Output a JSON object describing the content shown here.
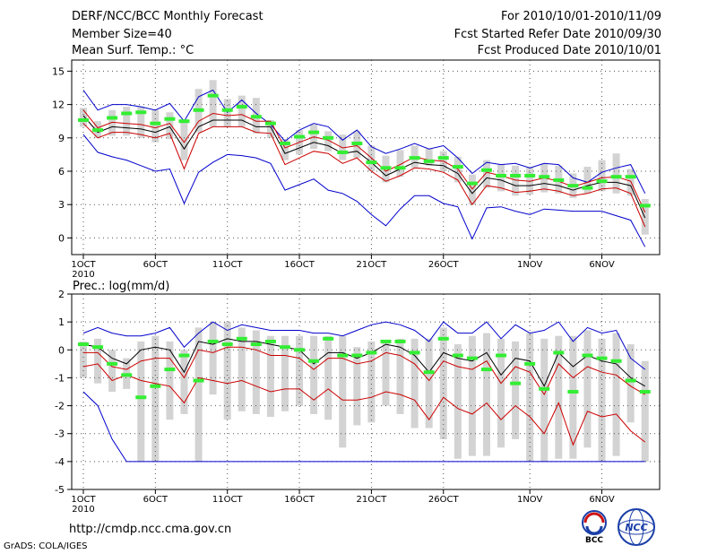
{
  "header": {
    "left": [
      "DERF/NCC/BCC Monthly Forecast",
      "Member Size=40",
      "Mean Surf. Temp.: °C"
    ],
    "right": [
      "For 2010/10/01-2010/11/09",
      "Fcst Started Refer Date 2010/09/30",
      "Fcst Produced Date 2010/10/01"
    ]
  },
  "footer": {
    "url": "http://cmdp.ncc.cma.gov.cn",
    "credit": "GrADS: COLA/IGES",
    "logo_bcc": "BCC",
    "logo_ncc": "NCC"
  },
  "colors": {
    "box": "#d3d3d3",
    "median": "#000000",
    "inner": "#cc0000",
    "outer": "#0000cc",
    "obs": "#33ee33",
    "grid": "#555555"
  },
  "chart_data": [
    {
      "type": "box-forecast",
      "title": "Mean Surf. Temp.: °C",
      "ylim": [
        -1.5,
        16
      ],
      "yticks": [
        0,
        3,
        6,
        9,
        12,
        15
      ],
      "ytick_labels": [
        "0",
        "3",
        "6",
        "9",
        "12",
        "15"
      ],
      "xtick_days": [
        1,
        6,
        11,
        16,
        21,
        26,
        32,
        37
      ],
      "xtick_labels": [
        "1OCT",
        "6OCT",
        "11OCT",
        "16OCT",
        "21OCT",
        "26OCT",
        "1NOV",
        "6NOV"
      ],
      "xtick_sublabel": "2010",
      "days": [
        1,
        2,
        3,
        4,
        5,
        6,
        7,
        8,
        9,
        10,
        11,
        12,
        13,
        14,
        15,
        16,
        17,
        18,
        19,
        20,
        21,
        22,
        23,
        24,
        25,
        26,
        27,
        28,
        29,
        30,
        31,
        32,
        33,
        34,
        35,
        36,
        37,
        38,
        39,
        40
      ],
      "box_low": [
        10.0,
        9.0,
        9.2,
        9.2,
        9.0,
        8.6,
        8.9,
        7.0,
        9.5,
        10.0,
        10.0,
        10.0,
        9.4,
        9.0,
        7.0,
        7.5,
        8.0,
        7.8,
        7.0,
        7.2,
        6.0,
        5.0,
        5.5,
        6.3,
        6.5,
        6.0,
        5.0,
        3.0,
        4.5,
        4.2,
        3.8,
        3.9,
        4.1,
        4.0,
        3.6,
        4.0,
        4.2,
        4.0,
        3.8,
        0.3
      ],
      "box_high": [
        11.7,
        10.5,
        11.5,
        11.8,
        11.8,
        11.5,
        11.3,
        10.6,
        13.4,
        14.2,
        12.5,
        12.8,
        12.6,
        10.6,
        8.9,
        9.7,
        10.2,
        9.6,
        9.3,
        9.6,
        8.3,
        7.4,
        7.9,
        8.3,
        8.0,
        7.8,
        7.3,
        5.7,
        7.0,
        6.6,
        6.5,
        6.4,
        6.7,
        6.5,
        5.8,
        6.4,
        7.0,
        7.6,
        6.2,
        3.5
      ],
      "median": [
        11.0,
        9.5,
        10.0,
        9.9,
        9.8,
        9.5,
        10.0,
        8.0,
        10.0,
        10.6,
        10.6,
        10.6,
        10.0,
        10.0,
        7.6,
        8.1,
        8.6,
        8.3,
        7.6,
        7.8,
        6.8,
        5.6,
        6.2,
        6.8,
        6.6,
        6.5,
        5.8,
        4.0,
        5.4,
        5.2,
        4.7,
        4.7,
        4.9,
        4.7,
        4.3,
        4.7,
        5.0,
        5.0,
        4.7,
        1.8
      ],
      "inner_high": [
        11.5,
        9.9,
        10.4,
        10.3,
        10.2,
        9.9,
        10.3,
        8.6,
        10.5,
        11.2,
        11.0,
        11.1,
        10.5,
        10.5,
        8.1,
        8.6,
        9.1,
        8.8,
        8.1,
        8.3,
        7.2,
        6.0,
        6.6,
        7.3,
        7.0,
        6.9,
        6.2,
        4.4,
        5.9,
        5.6,
        5.2,
        5.1,
        5.4,
        5.1,
        4.6,
        5.0,
        5.4,
        5.5,
        5.1,
        2.3
      ],
      "inner_low": [
        10.3,
        9.0,
        9.5,
        9.5,
        9.3,
        9.0,
        9.4,
        6.2,
        9.4,
        10.0,
        10.0,
        10.0,
        9.5,
        9.4,
        6.6,
        7.2,
        7.8,
        7.6,
        6.7,
        7.2,
        6.0,
        5.1,
        5.6,
        6.3,
        6.2,
        5.9,
        5.2,
        3.0,
        4.7,
        4.5,
        4.1,
        4.2,
        4.4,
        4.2,
        3.8,
        4.0,
        4.4,
        4.5,
        4.0,
        1.0
      ],
      "outer_high": [
        13.3,
        11.5,
        12.0,
        12.0,
        11.8,
        11.5,
        12.1,
        10.5,
        12.7,
        13.3,
        11.3,
        12.4,
        11.2,
        10.2,
        8.7,
        9.7,
        10.3,
        10.0,
        8.8,
        9.7,
        8.2,
        7.6,
        8.0,
        8.5,
        8.0,
        8.3,
        7.2,
        5.8,
        6.8,
        6.6,
        6.7,
        6.3,
        6.7,
        6.6,
        5.4,
        5.0,
        5.9,
        6.3,
        6.6,
        4.0
      ],
      "outer_low": [
        9.3,
        7.7,
        7.3,
        7.0,
        6.5,
        6.0,
        6.2,
        3.1,
        5.9,
        6.8,
        7.5,
        7.4,
        7.2,
        6.7,
        4.3,
        4.8,
        5.3,
        4.3,
        4.0,
        3.3,
        2.1,
        1.1,
        2.6,
        3.8,
        3.8,
        3.1,
        2.8,
        -0.1,
        2.7,
        2.8,
        2.4,
        2.1,
        2.6,
        2.5,
        2.4,
        2.4,
        2.4,
        2.0,
        1.6,
        -0.8
      ],
      "observed": [
        10.6,
        9.7,
        10.8,
        11.2,
        11.3,
        10.3,
        10.7,
        10.5,
        11.5,
        12.8,
        11.5,
        11.8,
        10.9,
        10.3,
        8.5,
        9.1,
        9.5,
        9.0,
        7.7,
        8.5,
        6.8,
        6.3,
        6.3,
        7.2,
        6.9,
        7.2,
        6.4,
        4.9,
        6.1,
        5.6,
        5.6,
        5.6,
        5.5,
        5.2,
        4.7,
        4.5,
        5.1,
        5.5,
        5.5,
        2.9
      ]
    },
    {
      "type": "box-forecast",
      "title": "Prec.: log(mm/d)",
      "ylim": [
        -5,
        2
      ],
      "yticks": [
        -5,
        -4,
        -3,
        -2,
        -1,
        0,
        1,
        2
      ],
      "ytick_labels": [
        "-5",
        "-4",
        "-3",
        "-2",
        "-1",
        "0",
        "1",
        "2"
      ],
      "xtick_days": [
        1,
        6,
        11,
        16,
        21,
        26,
        32,
        37
      ],
      "xtick_labels": [
        "1OCT",
        "6OCT",
        "11OCT",
        "16OCT",
        "21OCT",
        "26OCT",
        "1NOV",
        "6NOV"
      ],
      "xtick_sublabel": "2010",
      "days": [
        1,
        2,
        3,
        4,
        5,
        6,
        7,
        8,
        9,
        10,
        11,
        12,
        13,
        14,
        15,
        16,
        17,
        18,
        19,
        20,
        21,
        22,
        23,
        24,
        25,
        26,
        27,
        28,
        29,
        30,
        31,
        32,
        33,
        34,
        35,
        36,
        37,
        38,
        39,
        40
      ],
      "box_low": [
        -1.0,
        -1.2,
        -1.5,
        -1.4,
        -4.0,
        -4.0,
        -2.5,
        -2.3,
        -4.0,
        -1.6,
        -2.5,
        -2.2,
        -2.3,
        -2.4,
        -2.2,
        -2.0,
        -2.3,
        -2.5,
        -3.5,
        -2.7,
        -2.6,
        -2.0,
        -2.3,
        -2.8,
        -2.8,
        -3.2,
        -3.9,
        -3.8,
        -3.8,
        -3.5,
        -3.2,
        -4.0,
        -4.0,
        -3.9,
        -3.9,
        -3.5,
        -4.0,
        -3.8,
        -2.6,
        -4.0
      ],
      "box_high": [
        0.3,
        0.4,
        0.0,
        -0.3,
        0.3,
        0.5,
        0.3,
        0.0,
        0.8,
        1.0,
        1.0,
        0.8,
        0.7,
        0.5,
        0.5,
        0.5,
        0.5,
        0.5,
        0.5,
        0.1,
        0.3,
        0.3,
        0.4,
        0.4,
        0.4,
        0.8,
        0.2,
        0.5,
        0.6,
        0.4,
        0.3,
        0.6,
        0.4,
        0.5,
        0.5,
        0.7,
        0.4,
        0.6,
        0.2,
        -0.4
      ],
      "median": [
        0.2,
        0.1,
        -0.3,
        -0.5,
        0.0,
        0.1,
        0.0,
        -0.8,
        0.3,
        0.2,
        0.4,
        0.3,
        0.3,
        0.2,
        0.1,
        0.0,
        -0.5,
        -0.1,
        -0.1,
        -0.3,
        -0.1,
        0.2,
        0.1,
        -0.2,
        -0.8,
        -0.1,
        -0.3,
        -0.4,
        -0.1,
        -0.9,
        -0.3,
        -0.4,
        -1.3,
        -0.1,
        -0.6,
        -0.2,
        -0.4,
        -0.5,
        -1.0,
        -1.3
      ],
      "inner_high": [
        -0.1,
        -0.1,
        -0.6,
        -0.7,
        -0.4,
        -0.3,
        -0.3,
        -1.0,
        0.0,
        -0.1,
        0.1,
        0.1,
        0.0,
        -0.2,
        -0.2,
        -0.3,
        -0.7,
        -0.3,
        -0.3,
        -0.5,
        -0.4,
        -0.1,
        -0.2,
        -0.5,
        -1.1,
        -0.4,
        -0.6,
        -0.7,
        -0.4,
        -1.2,
        -0.6,
        -0.8,
        -1.6,
        -0.5,
        -1.0,
        -0.6,
        -0.8,
        -0.9,
        -1.3,
        -1.6
      ],
      "inner_low": [
        -0.6,
        -0.5,
        -1.1,
        -0.9,
        -1.1,
        -1.2,
        -1.3,
        -1.9,
        -1.0,
        -1.1,
        -1.2,
        -1.1,
        -1.3,
        -1.5,
        -1.4,
        -1.4,
        -1.8,
        -1.4,
        -1.8,
        -1.8,
        -1.7,
        -1.5,
        -1.6,
        -1.8,
        -2.5,
        -1.7,
        -2.1,
        -2.3,
        -1.9,
        -2.5,
        -2.0,
        -2.4,
        -3.0,
        -1.9,
        -3.4,
        -2.2,
        -2.4,
        -2.3,
        -2.9,
        -3.3
      ],
      "outer_high": [
        0.6,
        0.8,
        0.6,
        0.5,
        0.5,
        0.6,
        0.8,
        0.1,
        0.6,
        1.0,
        0.7,
        0.9,
        0.8,
        0.7,
        0.7,
        0.7,
        0.6,
        0.6,
        0.5,
        0.7,
        0.9,
        1.0,
        0.9,
        0.7,
        0.3,
        1.0,
        0.6,
        0.6,
        1.0,
        0.4,
        0.9,
        0.6,
        0.7,
        1.0,
        0.3,
        0.8,
        0.6,
        0.7,
        -0.3,
        -0.7
      ],
      "outer_low": [
        -1.5,
        -2.0,
        -3.2,
        -4.0,
        -4.0,
        -4.0,
        -4.0,
        -4.0,
        -4.0,
        -4.0,
        -4.0,
        -4.0,
        -4.0,
        -4.0,
        -4.0,
        -4.0,
        -4.0,
        -4.0,
        -4.0,
        -4.0,
        -4.0,
        -4.0,
        -4.0,
        -4.0,
        -4.0,
        -4.0,
        -4.0,
        -4.0,
        -4.0,
        -4.0,
        -4.0,
        -4.0,
        -4.0,
        -4.0,
        -4.0,
        -4.0,
        -4.0,
        -4.0,
        -4.0,
        -4.0
      ],
      "observed": [
        0.2,
        0.1,
        -0.5,
        -0.9,
        -1.7,
        -1.3,
        -0.7,
        -0.2,
        -1.1,
        0.3,
        0.2,
        0.4,
        0.2,
        0.3,
        0.1,
        0.0,
        -0.4,
        0.4,
        -0.2,
        -0.2,
        -0.1,
        0.3,
        0.3,
        -0.1,
        -0.8,
        0.4,
        -0.2,
        -0.3,
        -0.7,
        -0.2,
        -1.2,
        -0.5,
        -1.4,
        -0.1,
        -1.5,
        -0.2,
        -0.3,
        -0.4,
        -1.1,
        -1.5
      ]
    }
  ]
}
